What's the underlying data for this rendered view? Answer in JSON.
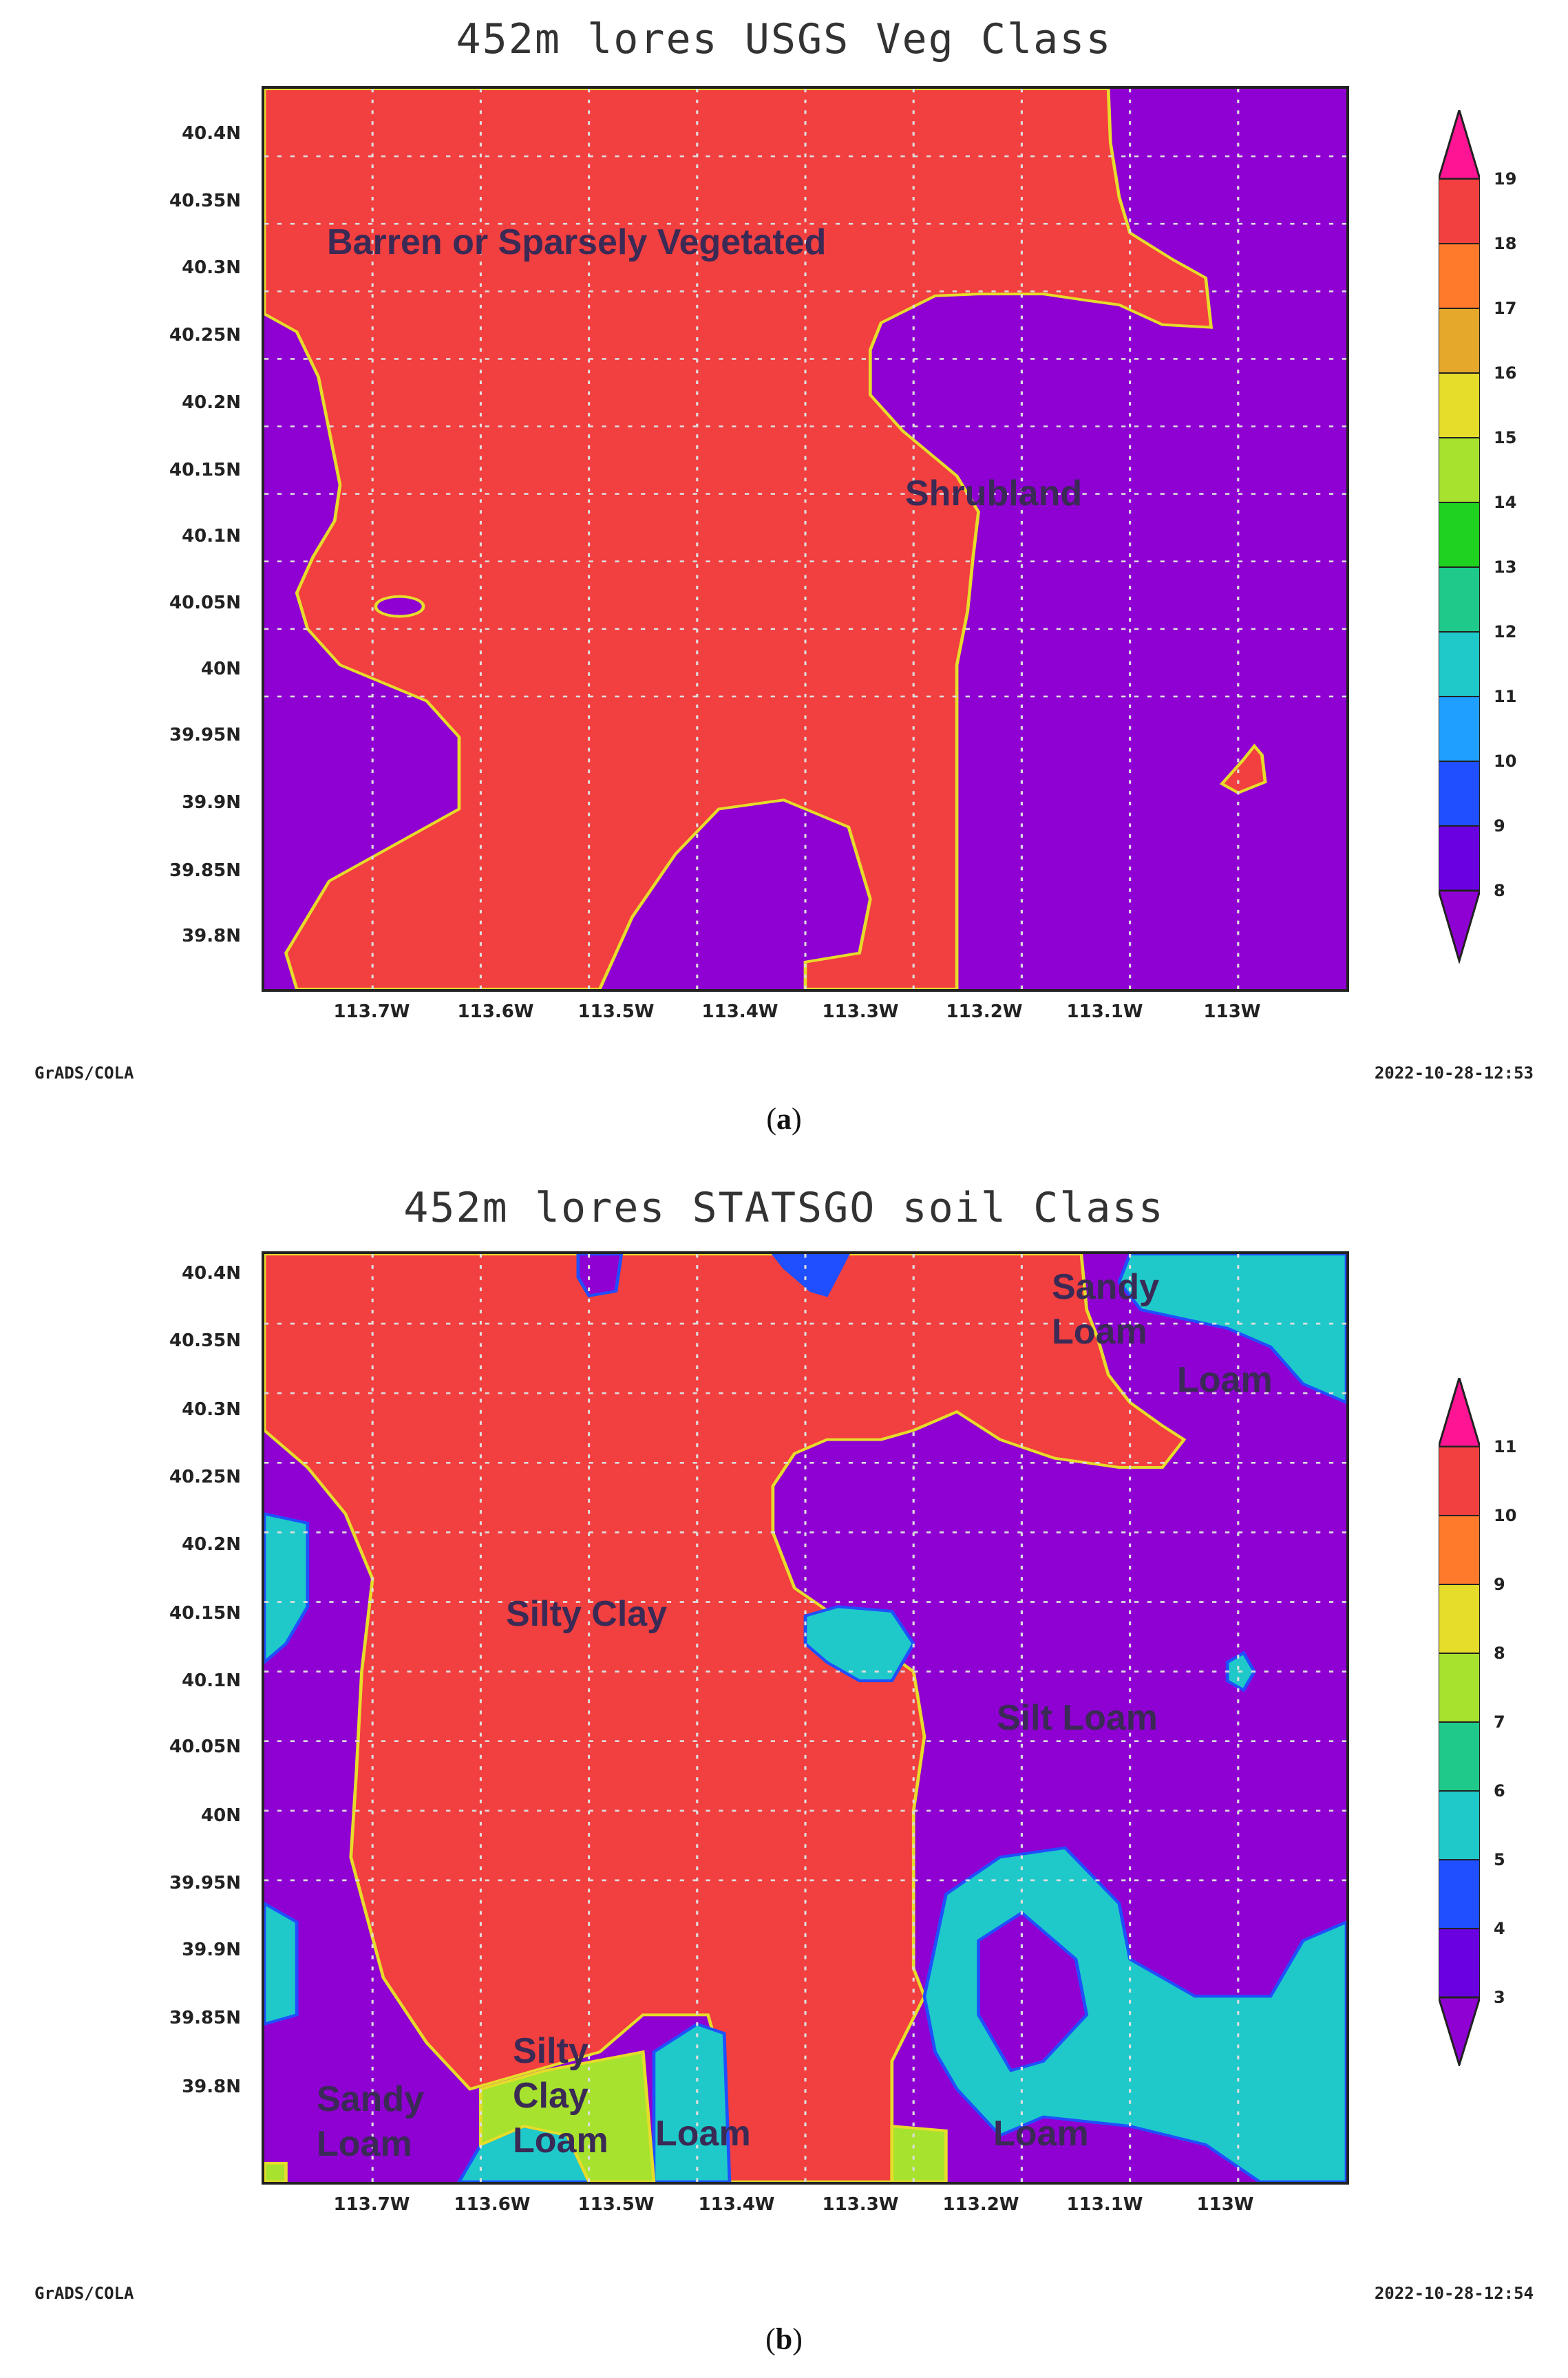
{
  "panel_a": {
    "title": "452m lores USGS Veg Class",
    "yticks": [
      "40.4N",
      "40.35N",
      "40.3N",
      "40.25N",
      "40.2N",
      "40.15N",
      "40.1N",
      "40.05N",
      "40N",
      "39.95N",
      "39.9N",
      "39.85N",
      "39.8N"
    ],
    "xticks": [
      "113.7W",
      "113.6W",
      "113.5W",
      "113.4W",
      "113.3W",
      "113.2W",
      "113.1W",
      "113W"
    ],
    "labels": {
      "barren": "Barren or Sparsely Vegetated",
      "shrubland": "Shrubland"
    },
    "colorbar": [
      "19",
      "18",
      "17",
      "16",
      "15",
      "14",
      "13",
      "12",
      "11",
      "10",
      "9",
      "8"
    ],
    "footer_left": "GrADS/COLA",
    "footer_right": "2022-10-28-12:53",
    "caption_letter": "a"
  },
  "panel_b": {
    "title": "452m lores STATSGO soil Class",
    "yticks": [
      "40.4N",
      "40.35N",
      "40.3N",
      "40.25N",
      "40.2N",
      "40.15N",
      "40.1N",
      "40.05N",
      "40N",
      "39.95N",
      "39.9N",
      "39.85N",
      "39.8N"
    ],
    "xticks": [
      "113.7W",
      "113.6W",
      "113.5W",
      "113.4W",
      "113.3W",
      "113.2W",
      "113.1W",
      "113W"
    ],
    "labels": {
      "sandy_loam_top_1": "Sandy",
      "sandy_loam_top_2": "Loam",
      "loam_top": "Loam",
      "silty_clay": "Silty Clay",
      "silt_loam": "Silt Loam",
      "sandy_loam_bottom_1": "Sandy",
      "sandy_loam_bottom_2": "Loam",
      "silty_clay_loam_1": "Silty",
      "silty_clay_loam_2": "Clay",
      "silty_clay_loam_3": "Loam",
      "loam_bottom_center": "Loam",
      "loam_bottom_right": "Loam"
    },
    "colorbar": [
      "11",
      "10",
      "9",
      "8",
      "7",
      "6",
      "5",
      "4",
      "3"
    ],
    "footer_left": "GrADS/COLA",
    "footer_right": "2022-10-28-12:54",
    "caption_letter": "b"
  },
  "colors": {
    "purple": "#8f00d2",
    "red": "#f23f3f",
    "cyan": "#1fc9c9",
    "lime": "#a6e22e",
    "blue": "#1f4fff",
    "yellow": "#e6dc2a"
  }
}
